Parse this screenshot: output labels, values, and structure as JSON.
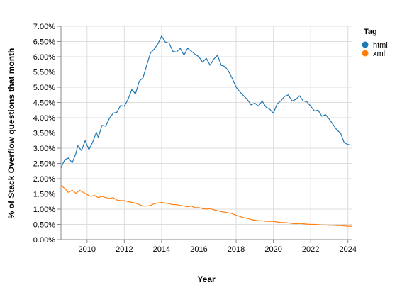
{
  "chart_data": {
    "type": "line",
    "xlabel": "Year",
    "ylabel": "% of Stack Overflow questions that month",
    "xlim": [
      2008.6,
      2024.2
    ],
    "ylim": [
      0,
      7
    ],
    "x_ticks": [
      "2010",
      "2012",
      "2014",
      "2016",
      "2018",
      "2020",
      "2022",
      "2024"
    ],
    "y_ticks": [
      "0.00%",
      "0.50%",
      "1.00%",
      "1.50%",
      "2.00%",
      "2.50%",
      "3.00%",
      "3.50%",
      "4.00%",
      "4.50%",
      "5.00%",
      "5.50%",
      "6.00%",
      "6.50%",
      "7.00%"
    ],
    "grid": true,
    "legend": {
      "title": "Tag",
      "position": "top-right"
    },
    "series": [
      {
        "name": "html",
        "color": "#1f77b4",
        "points": [
          [
            2008.6,
            2.35
          ],
          [
            2008.8,
            2.62
          ],
          [
            2009.0,
            2.68
          ],
          [
            2009.2,
            2.52
          ],
          [
            2009.4,
            2.82
          ],
          [
            2009.5,
            3.08
          ],
          [
            2009.7,
            2.92
          ],
          [
            2009.9,
            3.25
          ],
          [
            2010.1,
            2.95
          ],
          [
            2010.3,
            3.2
          ],
          [
            2010.5,
            3.52
          ],
          [
            2010.6,
            3.35
          ],
          [
            2010.8,
            3.75
          ],
          [
            2011.0,
            3.72
          ],
          [
            2011.2,
            3.98
          ],
          [
            2011.4,
            4.15
          ],
          [
            2011.6,
            4.18
          ],
          [
            2011.8,
            4.4
          ],
          [
            2012.0,
            4.38
          ],
          [
            2012.2,
            4.6
          ],
          [
            2012.4,
            4.92
          ],
          [
            2012.6,
            4.78
          ],
          [
            2012.8,
            5.2
          ],
          [
            2013.0,
            5.3
          ],
          [
            2013.2,
            5.72
          ],
          [
            2013.4,
            6.12
          ],
          [
            2013.6,
            6.25
          ],
          [
            2013.8,
            6.42
          ],
          [
            2014.0,
            6.68
          ],
          [
            2014.2,
            6.48
          ],
          [
            2014.4,
            6.45
          ],
          [
            2014.6,
            6.18
          ],
          [
            2014.8,
            6.15
          ],
          [
            2015.0,
            6.28
          ],
          [
            2015.2,
            6.05
          ],
          [
            2015.4,
            6.28
          ],
          [
            2015.6,
            6.18
          ],
          [
            2015.8,
            6.08
          ],
          [
            2016.0,
            6.0
          ],
          [
            2016.2,
            5.82
          ],
          [
            2016.4,
            5.95
          ],
          [
            2016.6,
            5.72
          ],
          [
            2016.8,
            5.92
          ],
          [
            2017.0,
            6.05
          ],
          [
            2017.2,
            5.72
          ],
          [
            2017.4,
            5.68
          ],
          [
            2017.6,
            5.52
          ],
          [
            2017.8,
            5.28
          ],
          [
            2018.0,
            5.0
          ],
          [
            2018.2,
            4.85
          ],
          [
            2018.4,
            4.72
          ],
          [
            2018.6,
            4.6
          ],
          [
            2018.8,
            4.42
          ],
          [
            2019.0,
            4.48
          ],
          [
            2019.2,
            4.38
          ],
          [
            2019.4,
            4.55
          ],
          [
            2019.6,
            4.35
          ],
          [
            2019.8,
            4.28
          ],
          [
            2020.0,
            4.15
          ],
          [
            2020.2,
            4.45
          ],
          [
            2020.4,
            4.55
          ],
          [
            2020.6,
            4.7
          ],
          [
            2020.8,
            4.75
          ],
          [
            2021.0,
            4.55
          ],
          [
            2021.2,
            4.6
          ],
          [
            2021.4,
            4.72
          ],
          [
            2021.6,
            4.55
          ],
          [
            2021.8,
            4.52
          ],
          [
            2022.0,
            4.38
          ],
          [
            2022.2,
            4.22
          ],
          [
            2022.4,
            4.25
          ],
          [
            2022.6,
            4.05
          ],
          [
            2022.8,
            4.1
          ],
          [
            2023.0,
            3.95
          ],
          [
            2023.2,
            3.78
          ],
          [
            2023.4,
            3.6
          ],
          [
            2023.6,
            3.5
          ],
          [
            2023.8,
            3.18
          ],
          [
            2024.0,
            3.12
          ],
          [
            2024.2,
            3.1
          ]
        ]
      },
      {
        "name": "xml",
        "color": "#ff7f0e",
        "points": [
          [
            2008.6,
            1.78
          ],
          [
            2008.8,
            1.68
          ],
          [
            2009.0,
            1.55
          ],
          [
            2009.2,
            1.62
          ],
          [
            2009.4,
            1.52
          ],
          [
            2009.6,
            1.62
          ],
          [
            2009.8,
            1.55
          ],
          [
            2010.0,
            1.48
          ],
          [
            2010.2,
            1.42
          ],
          [
            2010.4,
            1.45
          ],
          [
            2010.6,
            1.38
          ],
          [
            2010.8,
            1.42
          ],
          [
            2011.0,
            1.38
          ],
          [
            2011.2,
            1.35
          ],
          [
            2011.4,
            1.38
          ],
          [
            2011.6,
            1.3
          ],
          [
            2011.8,
            1.28
          ],
          [
            2012.0,
            1.28
          ],
          [
            2012.2,
            1.25
          ],
          [
            2012.4,
            1.22
          ],
          [
            2012.6,
            1.2
          ],
          [
            2012.8,
            1.15
          ],
          [
            2013.0,
            1.1
          ],
          [
            2013.2,
            1.1
          ],
          [
            2013.4,
            1.12
          ],
          [
            2013.6,
            1.18
          ],
          [
            2013.8,
            1.2
          ],
          [
            2014.0,
            1.22
          ],
          [
            2014.2,
            1.2
          ],
          [
            2014.4,
            1.18
          ],
          [
            2014.6,
            1.15
          ],
          [
            2014.8,
            1.15
          ],
          [
            2015.0,
            1.12
          ],
          [
            2015.2,
            1.1
          ],
          [
            2015.4,
            1.08
          ],
          [
            2015.6,
            1.1
          ],
          [
            2015.8,
            1.05
          ],
          [
            2016.0,
            1.05
          ],
          [
            2016.2,
            1.02
          ],
          [
            2016.4,
            1.0
          ],
          [
            2016.6,
            1.02
          ],
          [
            2016.8,
            0.98
          ],
          [
            2017.0,
            0.95
          ],
          [
            2017.2,
            0.92
          ],
          [
            2017.4,
            0.9
          ],
          [
            2017.6,
            0.88
          ],
          [
            2017.8,
            0.85
          ],
          [
            2018.0,
            0.8
          ],
          [
            2018.2,
            0.76
          ],
          [
            2018.4,
            0.72
          ],
          [
            2018.6,
            0.7
          ],
          [
            2018.8,
            0.66
          ],
          [
            2019.0,
            0.64
          ],
          [
            2019.2,
            0.62
          ],
          [
            2019.4,
            0.62
          ],
          [
            2019.6,
            0.6
          ],
          [
            2019.8,
            0.6
          ],
          [
            2020.0,
            0.6
          ],
          [
            2020.2,
            0.58
          ],
          [
            2020.4,
            0.56
          ],
          [
            2020.6,
            0.56
          ],
          [
            2020.8,
            0.55
          ],
          [
            2021.0,
            0.53
          ],
          [
            2021.2,
            0.52
          ],
          [
            2021.4,
            0.53
          ],
          [
            2021.6,
            0.52
          ],
          [
            2021.8,
            0.51
          ],
          [
            2022.0,
            0.5
          ],
          [
            2022.2,
            0.5
          ],
          [
            2022.4,
            0.49
          ],
          [
            2022.6,
            0.48
          ],
          [
            2022.8,
            0.48
          ],
          [
            2023.0,
            0.47
          ],
          [
            2023.2,
            0.47
          ],
          [
            2023.4,
            0.46
          ],
          [
            2023.6,
            0.46
          ],
          [
            2023.8,
            0.45
          ],
          [
            2024.0,
            0.44
          ],
          [
            2024.2,
            0.44
          ]
        ]
      }
    ]
  }
}
